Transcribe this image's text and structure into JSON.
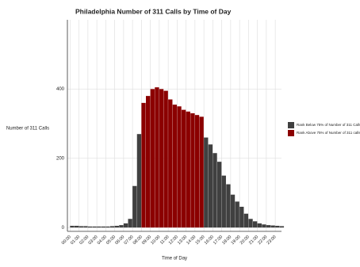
{
  "chart_data": {
    "type": "bar",
    "title": "Philadelphia Number of 311 Calls by Time of  Day",
    "x_label": "Time of Day",
    "y_label": "Number of 311 Calls",
    "series": [
      {
        "name": "Rank Below 75% of Number of 311 Calls",
        "color": "#404040",
        "x": [
          0,
          0.5,
          1,
          1.5,
          2,
          2.5,
          3,
          3.5,
          4,
          4.5,
          5,
          5.5,
          6,
          6.5,
          7,
          7.5,
          15,
          15.5,
          16,
          16.5,
          17,
          17.5,
          18,
          18.5,
          19,
          19.5,
          20,
          20.5,
          21,
          21.5,
          22,
          22.5,
          23,
          23.5
        ],
        "values": [
          5,
          5,
          4,
          4,
          3,
          3,
          3,
          3,
          3,
          4,
          5,
          7,
          12,
          25,
          120,
          270,
          260,
          240,
          215,
          190,
          150,
          125,
          95,
          75,
          60,
          40,
          25,
          18,
          12,
          9,
          7,
          6,
          5,
          4
        ]
      },
      {
        "name": "Rank Above 75% of Number of 311 calls",
        "color": "#8b0000",
        "x": [
          8,
          8.5,
          9,
          9.5,
          10,
          10.5,
          11,
          11.5,
          12,
          12.5,
          13,
          13.5,
          14,
          14.5
        ],
        "values": [
          360,
          380,
          400,
          405,
          400,
          395,
          370,
          355,
          350,
          340,
          335,
          330,
          325,
          320
        ]
      }
    ],
    "bin_width": 0.5,
    "xlim": [
      -0.3,
      23.7
    ],
    "xticks": [
      {
        "value": 0,
        "label": "00:00"
      },
      {
        "value": 1,
        "label": "01:00"
      },
      {
        "value": 2,
        "label": "02:00"
      },
      {
        "value": 3,
        "label": "03:00"
      },
      {
        "value": 4,
        "label": "04:00"
      },
      {
        "value": 5,
        "label": "05:00"
      },
      {
        "value": 6,
        "label": "06:00"
      },
      {
        "value": 7,
        "label": "07:00"
      },
      {
        "value": 8,
        "label": "08:00"
      },
      {
        "value": 9,
        "label": "09:00"
      },
      {
        "value": 10,
        "label": "10:00"
      },
      {
        "value": 11,
        "label": "11:00"
      },
      {
        "value": 12,
        "label": "12:00"
      },
      {
        "value": 13,
        "label": "13:00"
      },
      {
        "value": 14,
        "label": "14:00"
      },
      {
        "value": 15,
        "label": "15:00"
      },
      {
        "value": 16,
        "label": "16:00"
      },
      {
        "value": 17,
        "label": "17:00"
      },
      {
        "value": 18,
        "label": "18:00"
      },
      {
        "value": 19,
        "label": "19:00"
      },
      {
        "value": 20,
        "label": "20:00"
      },
      {
        "value": 21,
        "label": "21:00"
      },
      {
        "value": 22,
        "label": "22:00"
      },
      {
        "value": 23,
        "label": "23:00"
      }
    ],
    "ylim": [
      -11,
      600
    ],
    "yticks": [
      0,
      200,
      400
    ],
    "grid": true,
    "legend": "right"
  }
}
